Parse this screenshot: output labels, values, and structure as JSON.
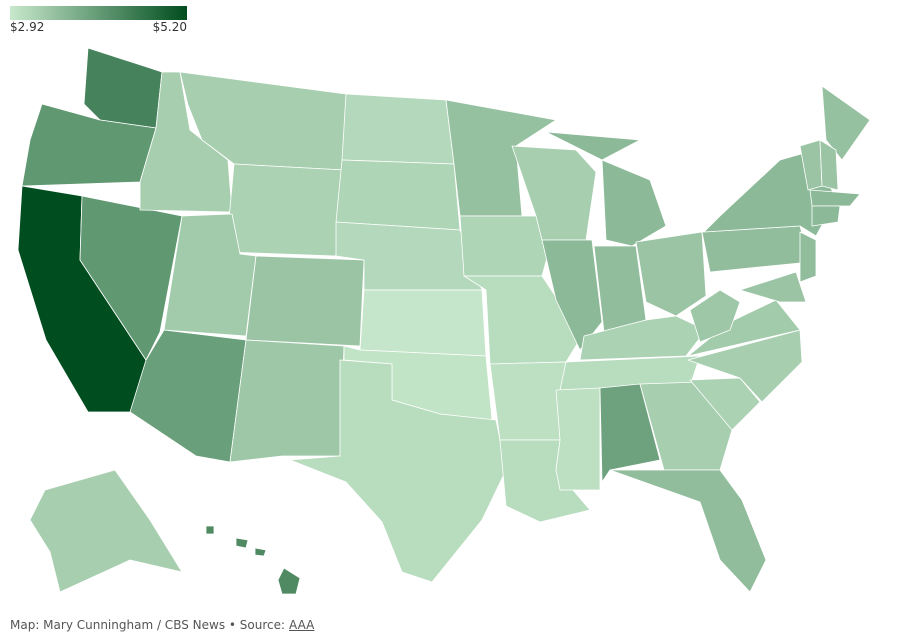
{
  "chart_data": {
    "type": "choropleth",
    "clim": [
      2.92,
      5.2
    ],
    "legend_ticks": [
      {
        "value": 2.92,
        "label": "$2.92"
      },
      {
        "value": 5.2,
        "label": "$5.20"
      }
    ],
    "colors": [
      "#c8e8cc",
      "#004d1f"
    ],
    "values": [
      4.4,
      4.1,
      5.2,
      4.1,
      3.3,
      3.3,
      3.25,
      3.35,
      3.45,
      4.0,
      3.4,
      3.15,
      3.2,
      3.15,
      2.95,
      3.0,
      3.1,
      3.5,
      3.2,
      3.1,
      3.05,
      3.1,
      3.3,
      3.6,
      3.6,
      3.55,
      3.45,
      3.25,
      3.1,
      3.05,
      3.95,
      3.3,
      3.55,
      3.25,
      3.3,
      3.35,
      3.4,
      3.55,
      3.6,
      3.5,
      3.45,
      3.45,
      3.6,
      3.6,
      3.55,
      3.45,
      3.3,
      4.3
    ],
    "credit": "Map: Mary Cunningham / CBS News • Source:",
    "source_link": "AAA"
  }
}
